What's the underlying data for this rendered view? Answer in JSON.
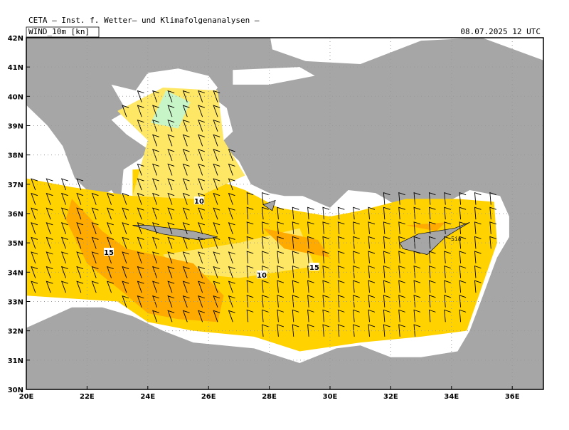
{
  "header": {
    "institute": "CETA – Inst. f. Wetter– und Klimafolgenanalysen –",
    "field": "WIND_10m [kn]",
    "valid_time": "08.07.2025 12 UTC"
  },
  "map": {
    "lat_labels": [
      "30N",
      "31N",
      "32N",
      "33N",
      "34N",
      "35N",
      "36N",
      "37N",
      "38N",
      "39N",
      "40N",
      "41N",
      "42N"
    ],
    "lon_labels": [
      "20E",
      "22E",
      "24E",
      "26E",
      "28E",
      "30E",
      "32E",
      "34E",
      "36E"
    ],
    "contour_labels": [
      "10",
      "15",
      "15",
      "10"
    ],
    "place_label": "Sia"
  }
}
